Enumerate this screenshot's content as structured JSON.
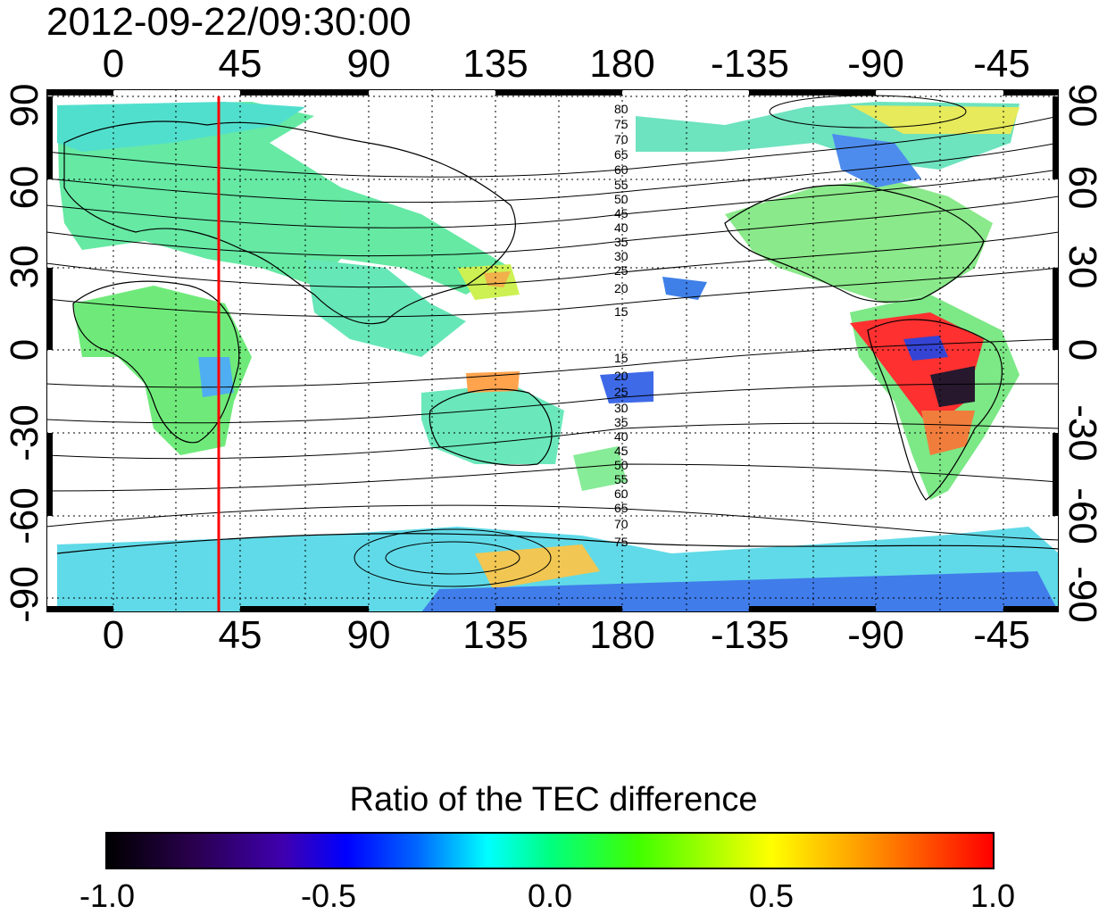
{
  "figure": {
    "timestamp": "2012-09-22/09:30:00",
    "lon_ticks_top": [
      "0",
      "45",
      "90",
      "135",
      "180",
      "-135",
      "-90",
      "-45"
    ],
    "lon_ticks_bottom": [
      "0",
      "45",
      "90",
      "135",
      "180",
      "-135",
      "-90",
      "-45"
    ],
    "lat_ticks_left": [
      "90",
      "60",
      "30",
      "0",
      "-30",
      "-60",
      "-90"
    ],
    "lat_ticks_right": [
      "90",
      "60",
      "30",
      "0",
      "-30",
      "-60",
      "-90"
    ],
    "contour_labels_north": [
      "80",
      "75",
      "70",
      "65",
      "60",
      "55",
      "50",
      "45",
      "40",
      "35",
      "30",
      "25",
      "20",
      "15"
    ],
    "contour_labels_south": [
      "15",
      "20",
      "25",
      "30",
      "35",
      "40",
      "45",
      "50",
      "55",
      "60",
      "65",
      "70",
      "75"
    ],
    "meridian_marker_lon": 40,
    "marker_color": "#ff0000"
  },
  "colorbar": {
    "title": "Ratio of the TEC difference",
    "ticks": [
      "-1.0",
      "-0.5",
      "0.0",
      "0.5",
      "1.0"
    ],
    "range": [
      -1.0,
      1.0
    ]
  }
}
